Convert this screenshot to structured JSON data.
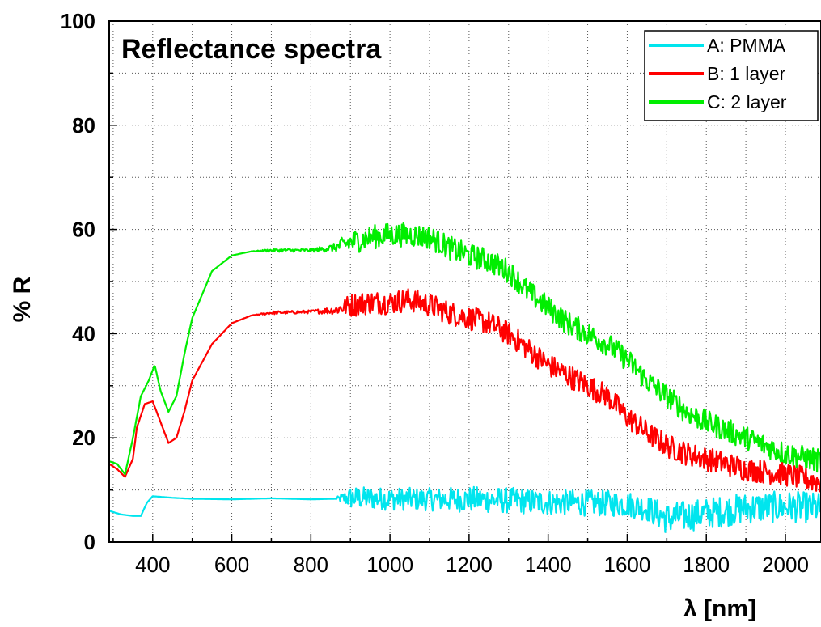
{
  "chart_data": {
    "type": "line",
    "title": "Reflectance spectra",
    "xlabel": "λ [nm]",
    "ylabel": "% R",
    "xlim": [
      290,
      2090
    ],
    "ylim": [
      0,
      100
    ],
    "x_ticks": [
      400,
      600,
      800,
      1000,
      1200,
      1400,
      1600,
      1800,
      2000
    ],
    "y_ticks": [
      0,
      20,
      40,
      60,
      80,
      100
    ],
    "grid": true,
    "legend_position": "top-right",
    "series": [
      {
        "name": "A: PMMA",
        "color": "#00e5ee",
        "x": [
          290,
          320,
          350,
          370,
          385,
          400,
          450,
          500,
          600,
          700,
          800,
          860,
          900,
          1000,
          1100,
          1200,
          1300,
          1400,
          1500,
          1600,
          1650,
          1700,
          1750,
          1800,
          1900,
          2000,
          2090
        ],
        "y": [
          6,
          5.3,
          5,
          5,
          7.5,
          8.8,
          8.5,
          8.3,
          8.2,
          8.4,
          8.2,
          8.3,
          8.5,
          8.3,
          8.2,
          8.2,
          8.0,
          7.6,
          7.5,
          7.3,
          6.5,
          4.5,
          5.0,
          5.5,
          6.5,
          6.8,
          6.5
        ],
        "noise": [
          0,
          0,
          0,
          0,
          0,
          0,
          0,
          0,
          0,
          0,
          0,
          0,
          2.2,
          2.2,
          2.2,
          2.5,
          2.5,
          2.5,
          2.5,
          2.5,
          2.5,
          3.0,
          3.0,
          3.0,
          3.0,
          3.0,
          3.0
        ]
      },
      {
        "name": "B: 1 layer",
        "color": "#ff0000",
        "x": [
          290,
          310,
          330,
          350,
          360,
          380,
          400,
          420,
          440,
          460,
          480,
          500,
          550,
          600,
          650,
          700,
          800,
          860,
          900,
          950,
          1000,
          1050,
          1100,
          1150,
          1200,
          1250,
          1300,
          1350,
          1400,
          1450,
          1500,
          1550,
          1600,
          1650,
          1700,
          1750,
          1800,
          1900,
          2000,
          2090
        ],
        "y": [
          15,
          14,
          12.5,
          16,
          22,
          26.5,
          27,
          23,
          19,
          20,
          25,
          31,
          38,
          42,
          43.5,
          44,
          44.2,
          44.5,
          45.5,
          46,
          46,
          46.5,
          45.5,
          44,
          43,
          42,
          40,
          37,
          34,
          32,
          30,
          28,
          24,
          21,
          18.5,
          17,
          16,
          14,
          13,
          11.5
        ],
        "noise": [
          0,
          0,
          0,
          0,
          0,
          0,
          0,
          0,
          0,
          0,
          0,
          0,
          0,
          0,
          0,
          0.3,
          0.3,
          0.8,
          2.3,
          2.3,
          2.3,
          2.3,
          2.3,
          2.3,
          2.3,
          2.3,
          2.3,
          2.3,
          2.3,
          2.3,
          2.3,
          2.3,
          2.3,
          2.3,
          2.3,
          2.3,
          2.3,
          2.3,
          2.3,
          2.3
        ]
      },
      {
        "name": "C: 2 layer",
        "color": "#00ee00",
        "x": [
          290,
          310,
          330,
          350,
          370,
          390,
          405,
          420,
          440,
          460,
          480,
          500,
          550,
          600,
          650,
          700,
          800,
          860,
          900,
          950,
          1000,
          1050,
          1100,
          1150,
          1200,
          1250,
          1300,
          1350,
          1400,
          1450,
          1500,
          1550,
          1600,
          1650,
          1700,
          1750,
          1800,
          1900,
          2000,
          2090
        ],
        "y": [
          15.5,
          15,
          13,
          20,
          28,
          31,
          34,
          29,
          25,
          28,
          36,
          43,
          52,
          55,
          55.8,
          56,
          56,
          56.5,
          57.5,
          58.5,
          59,
          59,
          58.5,
          56.5,
          55,
          54,
          52,
          48,
          45,
          42,
          40,
          38,
          35,
          31,
          28,
          25,
          23,
          20,
          17,
          15.5
        ],
        "noise": [
          0,
          0,
          0,
          0,
          0,
          0,
          0,
          0,
          0,
          0,
          0,
          0,
          0,
          0,
          0,
          0.3,
          0.3,
          0.8,
          2.3,
          2.3,
          2.3,
          2.3,
          2.3,
          2.3,
          2.3,
          2.3,
          2.3,
          2.3,
          2.3,
          2.3,
          2.3,
          2.3,
          2.3,
          2.3,
          2.3,
          2.3,
          2.3,
          2.3,
          2.3,
          2.3
        ]
      }
    ]
  }
}
